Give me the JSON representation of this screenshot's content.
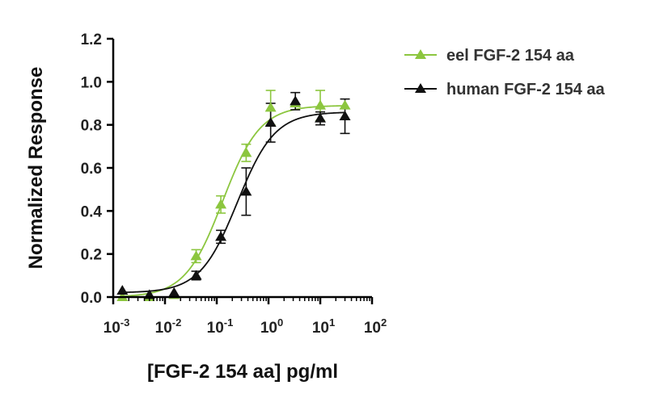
{
  "chart_data": {
    "type": "scatter",
    "title": "",
    "xlabel": "[FGF-2 154 aa] pg/ml",
    "ylabel": "Normalized Response",
    "x_scale": "log",
    "xlim": [
      0.001,
      100
    ],
    "ylim": [
      0.0,
      1.2
    ],
    "grid": false,
    "legend_position": "top-right",
    "x_ticks": [
      {
        "value": 0.001,
        "base": "10",
        "exp": "-3"
      },
      {
        "value": 0.01,
        "base": "10",
        "exp": "-2"
      },
      {
        "value": 0.1,
        "base": "10",
        "exp": "-1"
      },
      {
        "value": 1,
        "base": "10",
        "exp": "0"
      },
      {
        "value": 10,
        "base": "10",
        "exp": "1"
      },
      {
        "value": 100,
        "base": "10",
        "exp": "2"
      }
    ],
    "y_ticks": [
      "0.0",
      "0.2",
      "0.4",
      "0.6",
      "0.8",
      "1.0",
      "1.2"
    ],
    "series": [
      {
        "name": "eel FGF-2 154 aa",
        "color": "#8cc63f",
        "marker": "triangle",
        "curve": {
          "bottom": 0.0,
          "top": 0.89,
          "ec50": 0.13,
          "hill": 1.2
        },
        "points": [
          {
            "x": 0.0015,
            "y": 0.0,
            "err": 0.0
          },
          {
            "x": 0.005,
            "y": 0.0,
            "err": 0.0
          },
          {
            "x": 0.015,
            "y": 0.01,
            "err": 0.0
          },
          {
            "x": 0.04,
            "y": 0.19,
            "err": 0.03
          },
          {
            "x": 0.12,
            "y": 0.43,
            "err": 0.04
          },
          {
            "x": 0.37,
            "y": 0.67,
            "err": 0.04
          },
          {
            "x": 1.1,
            "y": 0.88,
            "err": 0.08
          },
          {
            "x": 3.3,
            "y": 0.9,
            "err": 0.0
          },
          {
            "x": 10,
            "y": 0.89,
            "err": 0.07
          },
          {
            "x": 30,
            "y": 0.89,
            "err": 0.0
          }
        ]
      },
      {
        "name": "human FGF-2 154 aa",
        "color": "#111111",
        "marker": "triangle",
        "curve": {
          "bottom": 0.02,
          "top": 0.86,
          "ec50": 0.25,
          "hill": 1.2
        },
        "points": [
          {
            "x": 0.0015,
            "y": 0.03,
            "err": 0.0
          },
          {
            "x": 0.005,
            "y": 0.01,
            "err": 0.0
          },
          {
            "x": 0.015,
            "y": 0.02,
            "err": 0.0
          },
          {
            "x": 0.04,
            "y": 0.1,
            "err": 0.02
          },
          {
            "x": 0.12,
            "y": 0.28,
            "err": 0.03
          },
          {
            "x": 0.37,
            "y": 0.49,
            "err": 0.11
          },
          {
            "x": 1.1,
            "y": 0.81,
            "err": 0.09
          },
          {
            "x": 3.3,
            "y": 0.91,
            "err": 0.04
          },
          {
            "x": 10,
            "y": 0.83,
            "err": 0.03
          },
          {
            "x": 30,
            "y": 0.84,
            "err": 0.08
          }
        ]
      }
    ]
  }
}
